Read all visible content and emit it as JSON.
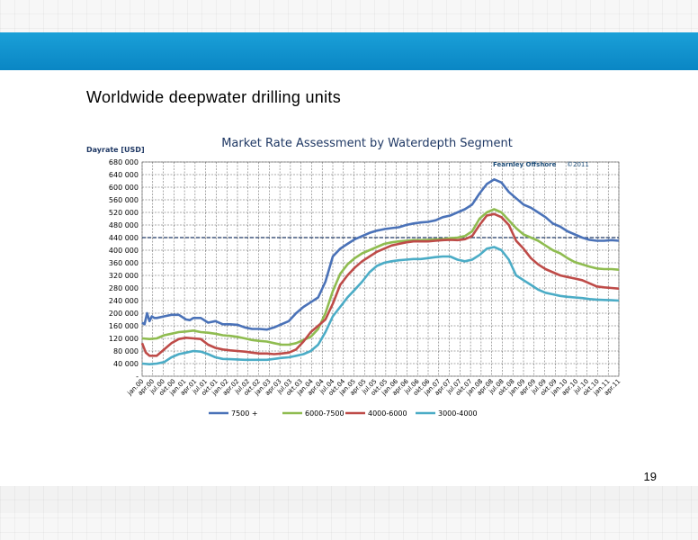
{
  "slide": {
    "title": "Worldwide deepwater drilling units",
    "page_number": "19"
  },
  "colors": {
    "header_band": "#0a86c4",
    "series_7500": "#4a72b8",
    "series_6000_7500": "#8fbc50",
    "series_4000_6000": "#be4b48",
    "series_3000_4000": "#4bacc6",
    "reference_line": "#1f3864"
  },
  "chart_data": {
    "type": "line",
    "title": "Market Rate Assessment by Waterdepth Segment",
    "ylabel": "Dayrate [USD]",
    "watermark_brand": "Fearnley Offshore",
    "watermark_copyright": "©2011",
    "ylim": [
      0,
      680000
    ],
    "y_ticks": [
      "-",
      "40 000",
      "80 000",
      "120 000",
      "160 000",
      "200 000",
      "240 000",
      "280 000",
      "320 000",
      "360 000",
      "400 000",
      "440 000",
      "480 000",
      "520 000",
      "560 000",
      "600 000",
      "640 000",
      "680 000"
    ],
    "x_ticks": [
      "jan.00",
      "apr.00",
      "jul.00",
      "okt.00",
      "jan.01",
      "apr.01",
      "jul.01",
      "okt.01",
      "jan.02",
      "apr.02",
      "jul.02",
      "okt.02",
      "jan.03",
      "apr.03",
      "jul.03",
      "okt.03",
      "jan.04",
      "apr.04",
      "jul.04",
      "okt.04",
      "jan.05",
      "apr.05",
      "jul.05",
      "okt.05",
      "jan.06",
      "apr.06",
      "jul.06",
      "okt.06",
      "jan.07",
      "apr.07",
      "jul.07",
      "okt.07",
      "jan.08",
      "apr.08",
      "jul.08",
      "okt.08",
      "jan.09",
      "apr.09",
      "jul.09",
      "okt.09",
      "jan.10",
      "apr.10",
      "jul.10",
      "okt.10",
      "jan.11",
      "apr.11"
    ],
    "reference_line": 440000,
    "grid": true,
    "legend_position": "bottom",
    "series": [
      {
        "name": "7500 +",
        "color": "#4a72b8",
        "points": [
          [
            0,
            170000
          ],
          [
            0.33,
            165000
          ],
          [
            0.67,
            200000
          ],
          [
            1,
            175000
          ],
          [
            1.33,
            190000
          ],
          [
            1.67,
            185000
          ],
          [
            2,
            185000
          ],
          [
            3,
            190000
          ],
          [
            4,
            195000
          ],
          [
            5,
            195000
          ],
          [
            6,
            180000
          ],
          [
            6.5,
            178000
          ],
          [
            7,
            185000
          ],
          [
            8,
            185000
          ],
          [
            9,
            170000
          ],
          [
            10,
            175000
          ],
          [
            11,
            165000
          ],
          [
            12,
            165000
          ],
          [
            13,
            163000
          ],
          [
            14,
            155000
          ],
          [
            15,
            150000
          ],
          [
            16,
            150000
          ],
          [
            17,
            148000
          ],
          [
            18,
            155000
          ],
          [
            19,
            165000
          ],
          [
            20,
            175000
          ],
          [
            21,
            200000
          ],
          [
            22,
            220000
          ],
          [
            23,
            235000
          ],
          [
            24,
            250000
          ],
          [
            25,
            300000
          ],
          [
            26,
            380000
          ],
          [
            27,
            405000
          ],
          [
            28,
            420000
          ],
          [
            29,
            435000
          ],
          [
            30,
            445000
          ],
          [
            31,
            455000
          ],
          [
            32,
            462000
          ],
          [
            33,
            467000
          ],
          [
            34,
            470000
          ],
          [
            35,
            473000
          ],
          [
            36,
            480000
          ],
          [
            37,
            485000
          ],
          [
            38,
            488000
          ],
          [
            39,
            490000
          ],
          [
            40,
            495000
          ],
          [
            41,
            505000
          ],
          [
            42,
            510000
          ],
          [
            43,
            520000
          ],
          [
            44,
            530000
          ],
          [
            45,
            545000
          ],
          [
            46,
            580000
          ],
          [
            47,
            610000
          ],
          [
            48,
            625000
          ],
          [
            49,
            615000
          ],
          [
            50,
            585000
          ],
          [
            51,
            565000
          ],
          [
            52,
            545000
          ],
          [
            53,
            535000
          ],
          [
            54,
            520000
          ],
          [
            55,
            505000
          ],
          [
            56,
            485000
          ],
          [
            57,
            475000
          ],
          [
            58,
            460000
          ],
          [
            59,
            450000
          ],
          [
            60,
            440000
          ],
          [
            61,
            433000
          ],
          [
            62,
            430000
          ],
          [
            63,
            430000
          ],
          [
            64,
            432000
          ],
          [
            65,
            430000
          ]
        ]
      },
      {
        "name": "6000-7500",
        "color": "#8fbc50",
        "points": [
          [
            0,
            120000
          ],
          [
            1,
            118000
          ],
          [
            2,
            120000
          ],
          [
            3,
            130000
          ],
          [
            4,
            135000
          ],
          [
            5,
            140000
          ],
          [
            6,
            142000
          ],
          [
            7,
            145000
          ],
          [
            8,
            140000
          ],
          [
            9,
            138000
          ],
          [
            10,
            135000
          ],
          [
            11,
            130000
          ],
          [
            12,
            128000
          ],
          [
            13,
            125000
          ],
          [
            14,
            120000
          ],
          [
            15,
            115000
          ],
          [
            16,
            112000
          ],
          [
            17,
            110000
          ],
          [
            18,
            105000
          ],
          [
            19,
            100000
          ],
          [
            20,
            100000
          ],
          [
            21,
            105000
          ],
          [
            22,
            115000
          ],
          [
            23,
            125000
          ],
          [
            24,
            150000
          ],
          [
            25,
            200000
          ],
          [
            26,
            270000
          ],
          [
            27,
            325000
          ],
          [
            28,
            355000
          ],
          [
            29,
            375000
          ],
          [
            30,
            390000
          ],
          [
            31,
            400000
          ],
          [
            32,
            410000
          ],
          [
            33,
            420000
          ],
          [
            34,
            425000
          ],
          [
            35,
            428000
          ],
          [
            36,
            430000
          ],
          [
            37,
            432000
          ],
          [
            38,
            432000
          ],
          [
            39,
            433000
          ],
          [
            40,
            434000
          ],
          [
            41,
            435000
          ],
          [
            42,
            438000
          ],
          [
            43,
            440000
          ],
          [
            44,
            445000
          ],
          [
            45,
            460000
          ],
          [
            46,
            500000
          ],
          [
            47,
            520000
          ],
          [
            48,
            530000
          ],
          [
            49,
            520000
          ],
          [
            50,
            495000
          ],
          [
            51,
            470000
          ],
          [
            52,
            450000
          ],
          [
            53,
            440000
          ],
          [
            54,
            430000
          ],
          [
            55,
            415000
          ],
          [
            56,
            400000
          ],
          [
            57,
            390000
          ],
          [
            58,
            375000
          ],
          [
            59,
            362000
          ],
          [
            60,
            355000
          ],
          [
            61,
            348000
          ],
          [
            62,
            342000
          ],
          [
            63,
            340000
          ],
          [
            64,
            340000
          ],
          [
            65,
            338000
          ]
        ]
      },
      {
        "name": "4000-6000",
        "color": "#be4b48",
        "points": [
          [
            0,
            105000
          ],
          [
            0.5,
            75000
          ],
          [
            1,
            65000
          ],
          [
            2,
            65000
          ],
          [
            3,
            85000
          ],
          [
            4,
            105000
          ],
          [
            5,
            118000
          ],
          [
            6,
            122000
          ],
          [
            7,
            120000
          ],
          [
            8,
            118000
          ],
          [
            9,
            100000
          ],
          [
            10,
            90000
          ],
          [
            11,
            85000
          ],
          [
            12,
            82000
          ],
          [
            13,
            80000
          ],
          [
            14,
            78000
          ],
          [
            15,
            75000
          ],
          [
            16,
            72000
          ],
          [
            17,
            72000
          ],
          [
            18,
            70000
          ],
          [
            19,
            72000
          ],
          [
            20,
            75000
          ],
          [
            21,
            85000
          ],
          [
            22,
            110000
          ],
          [
            23,
            140000
          ],
          [
            24,
            160000
          ],
          [
            25,
            180000
          ],
          [
            26,
            230000
          ],
          [
            27,
            290000
          ],
          [
            28,
            320000
          ],
          [
            29,
            345000
          ],
          [
            30,
            365000
          ],
          [
            31,
            380000
          ],
          [
            32,
            395000
          ],
          [
            33,
            405000
          ],
          [
            34,
            415000
          ],
          [
            35,
            420000
          ],
          [
            36,
            425000
          ],
          [
            37,
            428000
          ],
          [
            38,
            428000
          ],
          [
            39,
            428000
          ],
          [
            40,
            430000
          ],
          [
            41,
            432000
          ],
          [
            42,
            433000
          ],
          [
            43,
            432000
          ],
          [
            44,
            435000
          ],
          [
            45,
            445000
          ],
          [
            46,
            480000
          ],
          [
            47,
            510000
          ],
          [
            48,
            515000
          ],
          [
            49,
            505000
          ],
          [
            50,
            480000
          ],
          [
            51,
            430000
          ],
          [
            52,
            405000
          ],
          [
            53,
            375000
          ],
          [
            54,
            355000
          ],
          [
            55,
            340000
          ],
          [
            56,
            330000
          ],
          [
            57,
            320000
          ],
          [
            58,
            315000
          ],
          [
            59,
            310000
          ],
          [
            60,
            305000
          ],
          [
            61,
            295000
          ],
          [
            62,
            285000
          ],
          [
            63,
            282000
          ],
          [
            64,
            280000
          ],
          [
            65,
            278000
          ]
        ]
      },
      {
        "name": "3000-4000",
        "color": "#4bacc6",
        "points": [
          [
            0,
            40000
          ],
          [
            1,
            38000
          ],
          [
            2,
            40000
          ],
          [
            3,
            45000
          ],
          [
            4,
            60000
          ],
          [
            5,
            70000
          ],
          [
            6,
            75000
          ],
          [
            7,
            80000
          ],
          [
            8,
            78000
          ],
          [
            9,
            70000
          ],
          [
            10,
            60000
          ],
          [
            11,
            55000
          ],
          [
            12,
            54000
          ],
          [
            13,
            53000
          ],
          [
            14,
            52000
          ],
          [
            15,
            52000
          ],
          [
            16,
            52000
          ],
          [
            17,
            52000
          ],
          [
            18,
            55000
          ],
          [
            19,
            58000
          ],
          [
            20,
            60000
          ],
          [
            21,
            65000
          ],
          [
            22,
            70000
          ],
          [
            23,
            80000
          ],
          [
            24,
            100000
          ],
          [
            25,
            140000
          ],
          [
            26,
            190000
          ],
          [
            27,
            220000
          ],
          [
            28,
            250000
          ],
          [
            29,
            275000
          ],
          [
            30,
            300000
          ],
          [
            31,
            330000
          ],
          [
            32,
            350000
          ],
          [
            33,
            360000
          ],
          [
            34,
            365000
          ],
          [
            35,
            368000
          ],
          [
            36,
            370000
          ],
          [
            37,
            372000
          ],
          [
            38,
            372000
          ],
          [
            39,
            375000
          ],
          [
            40,
            378000
          ],
          [
            41,
            380000
          ],
          [
            42,
            380000
          ],
          [
            43,
            370000
          ],
          [
            44,
            365000
          ],
          [
            45,
            370000
          ],
          [
            46,
            385000
          ],
          [
            47,
            405000
          ],
          [
            48,
            410000
          ],
          [
            49,
            400000
          ],
          [
            50,
            370000
          ],
          [
            51,
            320000
          ],
          [
            52,
            305000
          ],
          [
            53,
            290000
          ],
          [
            54,
            275000
          ],
          [
            55,
            265000
          ],
          [
            56,
            260000
          ],
          [
            57,
            255000
          ],
          [
            58,
            252000
          ],
          [
            59,
            250000
          ],
          [
            60,
            248000
          ],
          [
            61,
            245000
          ],
          [
            62,
            243000
          ],
          [
            63,
            242000
          ],
          [
            64,
            241000
          ],
          [
            65,
            240000
          ]
        ]
      }
    ]
  }
}
